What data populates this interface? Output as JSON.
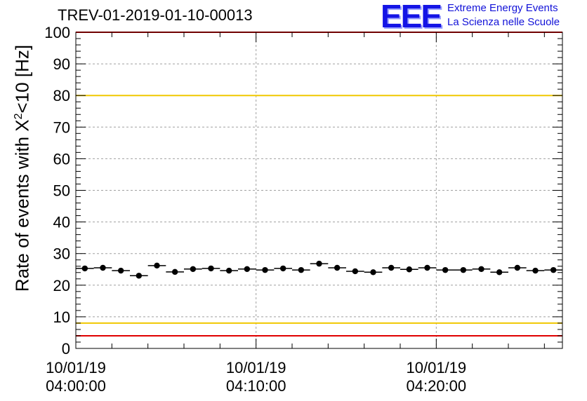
{
  "header": {
    "run_title": "TREV-01-2019-01-10-00013",
    "logo_mark": "EEE",
    "logo_line1": "Extreme Energy Events",
    "logo_line2": "La Scienza nelle Scuole"
  },
  "chart_data": {
    "type": "scatter",
    "title": "TREV-01-2019-01-10-00013",
    "ylabel_prefix": "Rate of events with X",
    "ylabel_superscript": "2",
    "ylabel_suffix": "<10 [Hz]",
    "ylim": [
      0,
      100
    ],
    "y_major_ticks": [
      0,
      10,
      20,
      30,
      40,
      50,
      60,
      70,
      80,
      90,
      100
    ],
    "x_range_minutes": [
      0,
      27
    ],
    "x_ticks": [
      {
        "minute": 0,
        "date": "10/01/19",
        "time": "04:00:00"
      },
      {
        "minute": 10,
        "date": "10/01/19",
        "time": "04:10:00"
      },
      {
        "minute": 20,
        "date": "10/01/19",
        "time": "04:20:00"
      }
    ],
    "bin_width_minutes": 1,
    "grid": true,
    "reference_lines": [
      {
        "value": 80,
        "color": "#f0c800"
      },
      {
        "value": 8,
        "color": "#f0c800"
      },
      {
        "value": 100,
        "color": "#e00000"
      },
      {
        "value": 4,
        "color": "#e00000"
      }
    ],
    "series": [
      {
        "name": "rate",
        "x": [
          0.5,
          1.5,
          2.5,
          3.5,
          4.5,
          5.5,
          6.5,
          7.5,
          8.5,
          9.5,
          10.5,
          11.5,
          12.5,
          13.5,
          14.5,
          15.5,
          16.5,
          17.5,
          18.5,
          19.5,
          20.5,
          21.5,
          22.5,
          23.5,
          24.5,
          25.5,
          26.5
        ],
        "values": [
          25.3,
          25.5,
          24.6,
          23.0,
          26.2,
          24.2,
          25.1,
          25.3,
          24.6,
          25.1,
          24.8,
          25.3,
          24.8,
          26.8,
          25.5,
          24.4,
          24.1,
          25.5,
          25.0,
          25.5,
          24.8,
          24.8,
          25.1,
          24.1,
          25.5,
          24.6,
          24.8
        ],
        "error": 0.3
      }
    ]
  }
}
